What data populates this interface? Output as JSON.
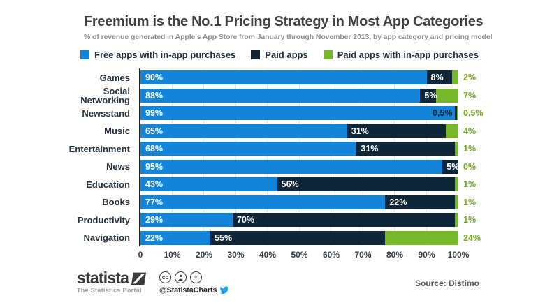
{
  "header": {
    "title": "Freemium is the No.1 Pricing Strategy in Most App Categories",
    "subtitle": "% of revenue generated in Apple's App Store from January through November 2013, by app category and pricing model"
  },
  "colors": {
    "free": "#1384d7",
    "paid": "#0e2637",
    "iap": "#76b82a",
    "iap_label_text": "#74ac21",
    "twitter_blue": "#1da1f2",
    "gridline": "#e4e4e4",
    "axis_line": "#1a2732"
  },
  "legend": [
    {
      "label": "Free apps with in-app purchases",
      "color": "#1384d7"
    },
    {
      "label": "Paid apps",
      "color": "#0e2637"
    },
    {
      "label": "Paid apps with in-app purchases",
      "color": "#76b82a"
    }
  ],
  "chart_data": {
    "type": "bar",
    "orientation": "horizontal",
    "stacked": true,
    "unit": "%",
    "categories": [
      "Games",
      "Social\nNetworking",
      "Newsstand",
      "Music",
      "Entertainment",
      "News",
      "Education",
      "Books",
      "Productivity",
      "Navigation"
    ],
    "series": [
      {
        "name": "Free apps with in-app purchases",
        "color": "#1384d7",
        "values": [
          90,
          88,
          99,
          65,
          68,
          95,
          43,
          77,
          29,
          22
        ],
        "labels": [
          "90%",
          "88%",
          "99%",
          "65%",
          "68%",
          "95%",
          "43%",
          "77%",
          "29%",
          "22%"
        ]
      },
      {
        "name": "Paid apps",
        "color": "#0e2637",
        "values": [
          8,
          5,
          0.5,
          31,
          31,
          5,
          56,
          22,
          70,
          55
        ],
        "labels": [
          "8%",
          "5%",
          "0,5%",
          "31%",
          "31%",
          "5%",
          "56%",
          "22%",
          "70%",
          "55%"
        ]
      },
      {
        "name": "Paid apps with in-app purchases",
        "color": "#76b82a",
        "values": [
          2,
          7,
          0.5,
          4,
          1,
          0,
          1,
          1,
          1,
          24
        ],
        "labels": [
          "2%",
          "7%",
          "0,5%",
          "4%",
          "1%",
          "0%",
          "1%",
          "1%",
          "1%",
          "24%"
        ]
      }
    ],
    "x_ticks": [
      "0",
      "10%",
      "20%",
      "30%",
      "40%",
      "50%",
      "60%",
      "70%",
      "80%",
      "90%",
      "100%"
    ],
    "xlim": [
      0,
      100
    ],
    "grid": true,
    "legend_position": "top"
  },
  "footer": {
    "brand": "statista",
    "brand_tagline": "The Statistics Portal",
    "twitter_handle": "@StatistaCharts",
    "license_cc": "cc",
    "license_nd": "=",
    "source": "Source: Distimo"
  }
}
